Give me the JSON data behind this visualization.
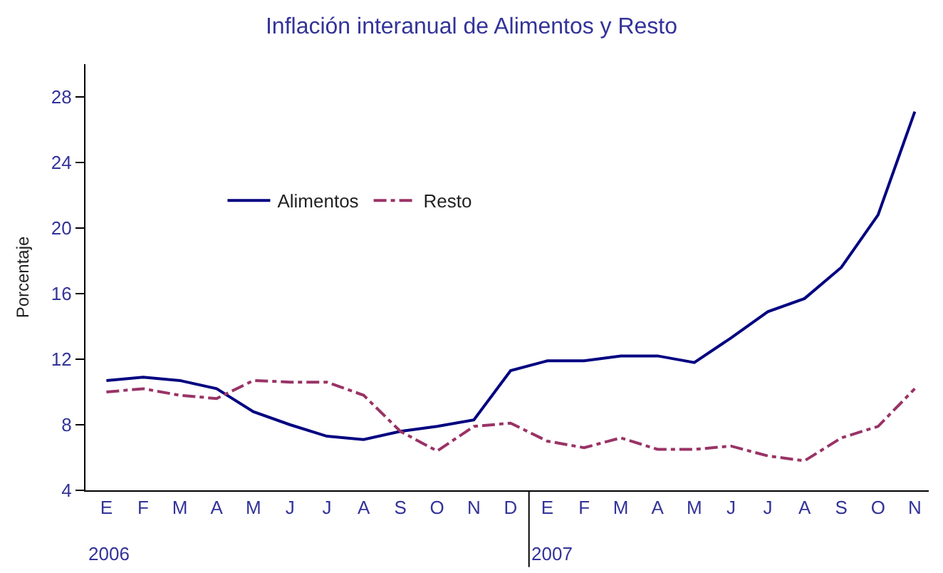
{
  "chart_data": {
    "type": "line",
    "title": "Inflación interanual de Alimentos y Resto",
    "ylabel": "Porcentaje",
    "categories": [
      "E",
      "F",
      "M",
      "A",
      "M",
      "J",
      "J",
      "A",
      "S",
      "O",
      "N",
      "D",
      "E",
      "F",
      "M",
      "A",
      "M",
      "J",
      "J",
      "A",
      "S",
      "O",
      "N"
    ],
    "series": [
      {
        "name": "Alimentos",
        "color": "#000080",
        "line_style": "solid",
        "values": [
          10.7,
          10.9,
          10.7,
          10.2,
          8.8,
          8.0,
          7.3,
          7.1,
          7.6,
          7.9,
          8.3,
          11.3,
          11.9,
          11.9,
          12.2,
          12.2,
          11.8,
          13.3,
          14.9,
          15.7,
          17.6,
          20.8,
          27.1
        ]
      },
      {
        "name": "Resto",
        "color": "#993366",
        "line_style": "dashdot",
        "values": [
          10.0,
          10.2,
          9.8,
          9.6,
          10.7,
          10.6,
          10.6,
          9.8,
          7.6,
          6.4,
          7.9,
          8.1,
          7.0,
          6.6,
          7.2,
          6.5,
          6.5,
          6.7,
          6.1,
          5.8,
          7.2,
          7.9,
          10.2
        ]
      }
    ],
    "annotations": [
      "2006",
      "2007"
    ],
    "ylim": [
      4,
      30
    ],
    "yticks": [
      4,
      8,
      12,
      16,
      20,
      24,
      28
    ],
    "legend": "top left",
    "marker": "none"
  }
}
